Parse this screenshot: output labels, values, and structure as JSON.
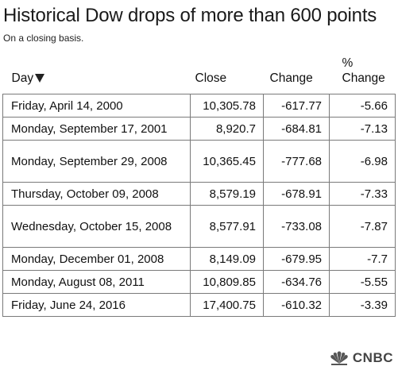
{
  "title": "Historical Dow drops of more than 600 points",
  "subtitle": "On a closing basis.",
  "columns": {
    "day": "Day",
    "close": "Close",
    "change": "Change",
    "pct_line1": "%",
    "pct_line2": "Change"
  },
  "sort_icon": "triangle-down-icon",
  "rows": [
    {
      "day": "Friday, April 14, 2000",
      "close": "10,305.78",
      "change": "-617.77",
      "pct": "-5.66"
    },
    {
      "day": "Monday, September 17, 2001",
      "close": "8,920.7",
      "change": "-684.81",
      "pct": "-7.13"
    },
    {
      "day": "Monday, September 29, 2008",
      "close": "10,365.45",
      "change": "-777.68",
      "pct": "-6.98"
    },
    {
      "day": "Thursday, October 09, 2008",
      "close": "8,579.19",
      "change": "-678.91",
      "pct": "-7.33"
    },
    {
      "day": "Wednesday, October 15, 2008",
      "close": "8,577.91",
      "change": "-733.08",
      "pct": "-7.87"
    },
    {
      "day": "Monday, December 01, 2008",
      "close": "8,149.09",
      "change": "-679.95",
      "pct": "-7.7"
    },
    {
      "day": "Monday, August 08, 2011",
      "close": "10,809.85",
      "change": "-634.76",
      "pct": "-5.55"
    },
    {
      "day": "Friday, June 24, 2016",
      "close": "17,400.75",
      "change": "-610.32",
      "pct": "-3.39"
    }
  ],
  "logo": {
    "text": "CNBC",
    "icon": "peacock-icon"
  }
}
